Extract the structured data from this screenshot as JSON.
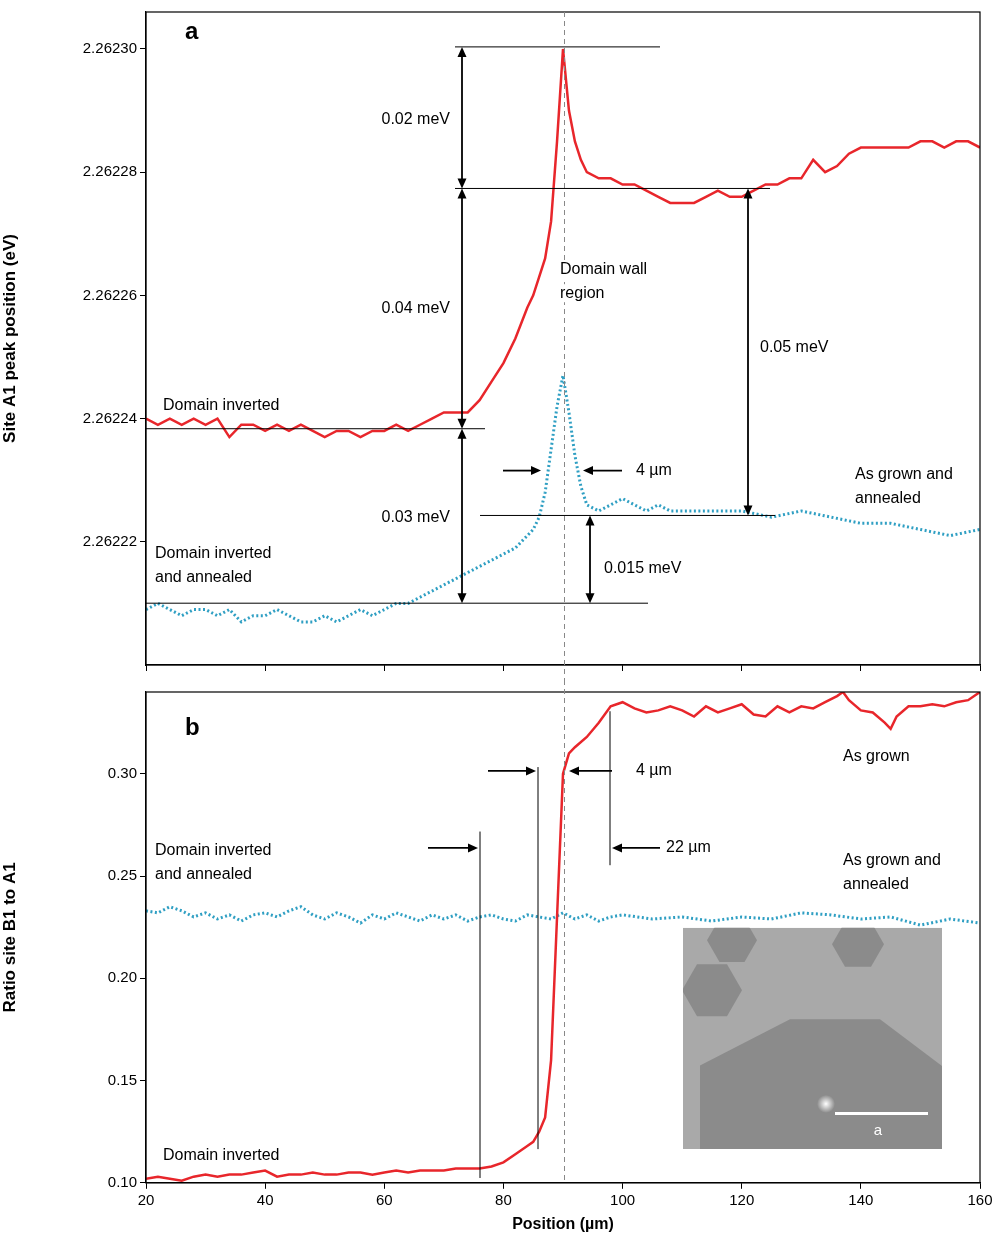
{
  "chart_data": [
    {
      "type": "line",
      "panel_label": "a",
      "y_label": "Site A1 peak position (eV)",
      "xlim": [
        20,
        160
      ],
      "xticks": [
        20,
        40,
        60,
        80,
        100,
        120,
        140,
        160
      ],
      "ylim": [
        2.2622,
        2.262306
      ],
      "yticks": [
        2.26222,
        2.26224,
        2.26226,
        2.26228,
        {
          "value": 2.2623,
          "label": "2.26230"
        }
      ],
      "tick_labels": "y",
      "grid": false,
      "series": [
        {
          "color": "#e8262b",
          "line_style": "solid",
          "x": [
            20,
            22,
            24,
            26,
            28,
            30,
            32,
            34,
            36,
            38,
            40,
            42,
            44,
            46,
            48,
            50,
            52,
            54,
            56,
            58,
            60,
            62,
            64,
            66,
            68,
            70,
            72,
            74,
            76,
            78,
            80,
            82,
            84,
            85,
            86,
            87,
            88,
            89,
            90,
            91,
            92,
            93,
            94,
            96,
            98,
            100,
            102,
            104,
            106,
            108,
            110,
            112,
            114,
            116,
            118,
            120,
            122,
            124,
            126,
            128,
            130,
            132,
            134,
            136,
            138,
            140,
            142,
            144,
            146,
            148,
            150,
            152,
            154,
            156,
            158,
            160
          ],
          "values": [
            2.26224,
            2.262239,
            2.26224,
            2.262239,
            2.26224,
            2.262239,
            2.26224,
            2.262237,
            2.262239,
            2.262239,
            2.262238,
            2.262239,
            2.262238,
            2.262239,
            2.262238,
            2.262237,
            2.262238,
            2.262238,
            2.262237,
            2.262238,
            2.262238,
            2.262239,
            2.262238,
            2.262239,
            2.26224,
            2.262241,
            2.262241,
            2.262241,
            2.262243,
            2.262246,
            2.262249,
            2.262253,
            2.262258,
            2.26226,
            2.262263,
            2.262266,
            2.262272,
            2.262285,
            2.2623,
            2.26229,
            2.262285,
            2.262282,
            2.26228,
            2.262279,
            2.262279,
            2.262278,
            2.262278,
            2.262277,
            2.262276,
            2.262275,
            2.262275,
            2.262275,
            2.262276,
            2.262277,
            2.262276,
            2.262276,
            2.262277,
            2.262278,
            2.262278,
            2.262279,
            2.262279,
            2.262282,
            2.26228,
            2.262281,
            2.262283,
            2.262284,
            2.262284,
            2.262284,
            2.262284,
            2.262284,
            2.262285,
            2.262285,
            2.262284,
            2.262285,
            2.262285,
            2.262284
          ]
        },
        {
          "color": "#2f9fc3",
          "line_style": "dotted",
          "x": [
            20,
            22,
            24,
            26,
            28,
            30,
            32,
            34,
            36,
            38,
            40,
            42,
            44,
            46,
            48,
            50,
            52,
            54,
            56,
            58,
            60,
            62,
            64,
            66,
            68,
            70,
            72,
            74,
            76,
            78,
            80,
            82,
            84,
            85,
            86,
            87,
            88,
            89,
            90,
            91,
            92,
            93,
            94,
            96,
            98,
            100,
            102,
            104,
            106,
            108,
            110,
            115,
            120,
            125,
            130,
            135,
            140,
            145,
            150,
            155,
            160
          ],
          "values": [
            2.262209,
            2.26221,
            2.262209,
            2.262208,
            2.262209,
            2.262209,
            2.262208,
            2.262209,
            2.262207,
            2.262208,
            2.262208,
            2.262209,
            2.262208,
            2.262207,
            2.262207,
            2.262208,
            2.262207,
            2.262208,
            2.262209,
            2.262208,
            2.262209,
            2.26221,
            2.26221,
            2.262211,
            2.262212,
            2.262213,
            2.262214,
            2.262215,
            2.262216,
            2.262217,
            2.262218,
            2.262219,
            2.262221,
            2.262222,
            2.262224,
            2.262228,
            2.262235,
            2.262242,
            2.262247,
            2.262241,
            2.262234,
            2.262229,
            2.262226,
            2.262225,
            2.262226,
            2.262227,
            2.262226,
            2.262225,
            2.262226,
            2.262225,
            2.262225,
            2.262225,
            2.262225,
            2.262224,
            2.262225,
            2.262224,
            2.262223,
            2.262223,
            2.262222,
            2.262221,
            2.262222
          ]
        }
      ],
      "annotations": [
        "0.02 meV",
        "0.04 meV",
        "0.03 meV",
        "0.05 meV",
        "0.015 meV",
        "4 µm",
        "Domain wall region",
        "Domain inverted",
        "Domain inverted and annealed",
        "As grown and annealed"
      ]
    },
    {
      "type": "line",
      "panel_label": "b",
      "x_label": "Position (µm)",
      "y_label": "Ratio site B1 to A1",
      "xlim": [
        20,
        160
      ],
      "xticks": [
        20,
        40,
        60,
        80,
        100,
        120,
        140,
        160
      ],
      "ylim": [
        0.1,
        0.34
      ],
      "yticks": [
        {
          "value": 0.1,
          "label": "0.10"
        },
        0.15,
        {
          "value": 0.2,
          "label": "0.20"
        },
        0.25,
        {
          "value": 0.3,
          "label": "0.30"
        }
      ],
      "tick_labels": true,
      "grid": false,
      "series": [
        {
          "color": "#e8262b",
          "line_style": "solid",
          "x": [
            20,
            22,
            24,
            26,
            28,
            30,
            32,
            34,
            36,
            38,
            40,
            42,
            44,
            46,
            48,
            50,
            52,
            54,
            56,
            58,
            60,
            62,
            64,
            66,
            68,
            70,
            72,
            74,
            76,
            78,
            80,
            82,
            84,
            85,
            86,
            87,
            88,
            89,
            90,
            91,
            92,
            94,
            96,
            98,
            100,
            102,
            104,
            106,
            108,
            110,
            112,
            114,
            116,
            118,
            120,
            122,
            124,
            126,
            128,
            130,
            132,
            134,
            136,
            137,
            138,
            140,
            142,
            144,
            145,
            146,
            148,
            150,
            152,
            154,
            156,
            158,
            160
          ],
          "values": [
            0.102,
            0.103,
            0.102,
            0.101,
            0.103,
            0.104,
            0.103,
            0.104,
            0.104,
            0.105,
            0.106,
            0.103,
            0.104,
            0.104,
            0.105,
            0.104,
            0.104,
            0.105,
            0.105,
            0.104,
            0.105,
            0.106,
            0.105,
            0.106,
            0.106,
            0.106,
            0.107,
            0.107,
            0.107,
            0.108,
            0.11,
            0.114,
            0.118,
            0.12,
            0.125,
            0.132,
            0.16,
            0.23,
            0.3,
            0.31,
            0.313,
            0.318,
            0.325,
            0.333,
            0.335,
            0.332,
            0.33,
            0.331,
            0.333,
            0.331,
            0.328,
            0.333,
            0.33,
            0.332,
            0.334,
            0.329,
            0.328,
            0.333,
            0.33,
            0.333,
            0.332,
            0.335,
            0.338,
            0.34,
            0.336,
            0.331,
            0.33,
            0.325,
            0.322,
            0.328,
            0.333,
            0.333,
            0.334,
            0.333,
            0.335,
            0.336,
            0.34
          ]
        },
        {
          "color": "#2f9fc3",
          "line_style": "dotted",
          "x": [
            20,
            22,
            24,
            26,
            28,
            30,
            32,
            34,
            36,
            38,
            40,
            42,
            44,
            46,
            48,
            50,
            52,
            54,
            56,
            58,
            60,
            62,
            64,
            66,
            68,
            70,
            72,
            74,
            76,
            78,
            80,
            82,
            84,
            86,
            88,
            90,
            92,
            94,
            96,
            98,
            100,
            105,
            110,
            115,
            120,
            125,
            130,
            135,
            140,
            145,
            150,
            155,
            160
          ],
          "values": [
            0.233,
            0.232,
            0.235,
            0.233,
            0.23,
            0.232,
            0.229,
            0.231,
            0.228,
            0.231,
            0.232,
            0.23,
            0.233,
            0.235,
            0.231,
            0.229,
            0.232,
            0.23,
            0.227,
            0.231,
            0.229,
            0.232,
            0.23,
            0.228,
            0.231,
            0.229,
            0.231,
            0.228,
            0.23,
            0.231,
            0.229,
            0.228,
            0.231,
            0.23,
            0.229,
            0.232,
            0.229,
            0.231,
            0.228,
            0.23,
            0.231,
            0.229,
            0.23,
            0.228,
            0.23,
            0.229,
            0.232,
            0.231,
            0.229,
            0.23,
            0.226,
            0.229,
            0.227
          ]
        }
      ],
      "annotations": [
        "4 µm",
        "22 µm",
        "Domain inverted and annealed",
        "As grown",
        "As grown and annealed",
        "Domain inverted"
      ],
      "inset_label": "a"
    }
  ]
}
